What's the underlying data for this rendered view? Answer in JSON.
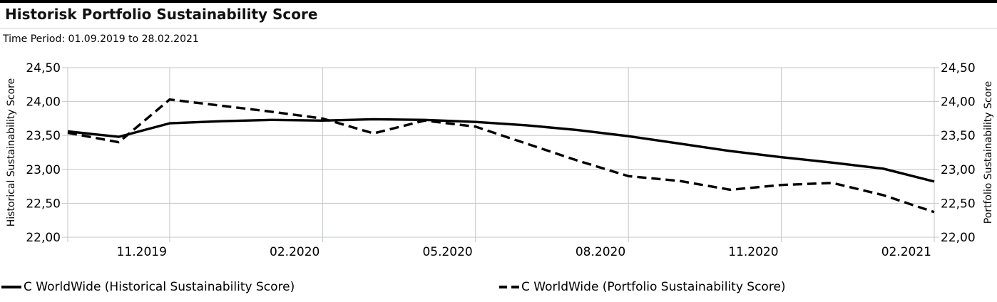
{
  "header": {
    "title": "Historisk Portfolio Sustainability Score",
    "time_period": "Time Period: 01.09.2019 to 28.02.2021"
  },
  "chart_data": {
    "type": "line",
    "x": [
      "09.2019",
      "10.2019",
      "11.2019",
      "12.2019",
      "01.2020",
      "02.2020",
      "03.2020",
      "04.2020",
      "05.2020",
      "06.2020",
      "07.2020",
      "08.2020",
      "09.2020",
      "10.2020",
      "11.2020",
      "12.2020",
      "01.2021",
      "02.2021"
    ],
    "x_tick_labels": [
      "11.2019",
      "02.2020",
      "05.2020",
      "08.2020",
      "11.2020",
      "02.2021"
    ],
    "series": [
      {
        "name": "C WorldWide (Historical Sustainability Score)",
        "style": "solid",
        "color": "#000000",
        "values": [
          23.56,
          23.48,
          23.68,
          23.71,
          23.73,
          23.72,
          23.74,
          23.73,
          23.7,
          23.65,
          23.58,
          23.49,
          23.38,
          23.27,
          23.18,
          23.1,
          23.01,
          22.82
        ]
      },
      {
        "name": "C WorldWide (Portfolio Sustainability Score)",
        "style": "dashed",
        "color": "#000000",
        "values": [
          23.54,
          23.4,
          24.03,
          23.94,
          23.85,
          23.75,
          23.53,
          23.72,
          23.63,
          23.38,
          23.13,
          22.9,
          22.83,
          22.7,
          22.77,
          22.8,
          22.62,
          22.37
        ]
      }
    ],
    "ylabel_left": "Historical Sustainability Score",
    "ylabel_right": "Portfolio Sustainability Score",
    "y_ticks": [
      22.0,
      22.5,
      23.0,
      23.5,
      24.0,
      24.5
    ],
    "y_tick_labels": [
      "22,00",
      "22,50",
      "23,00",
      "23,50",
      "24,00",
      "24,50"
    ],
    "ylim": [
      22.0,
      24.5
    ],
    "grid": true,
    "legend_position": "bottom"
  },
  "colors": {
    "grid": "#c3c7c7",
    "line": "#000000",
    "top_bar": "#000000",
    "divider": "#d4d4d4"
  }
}
